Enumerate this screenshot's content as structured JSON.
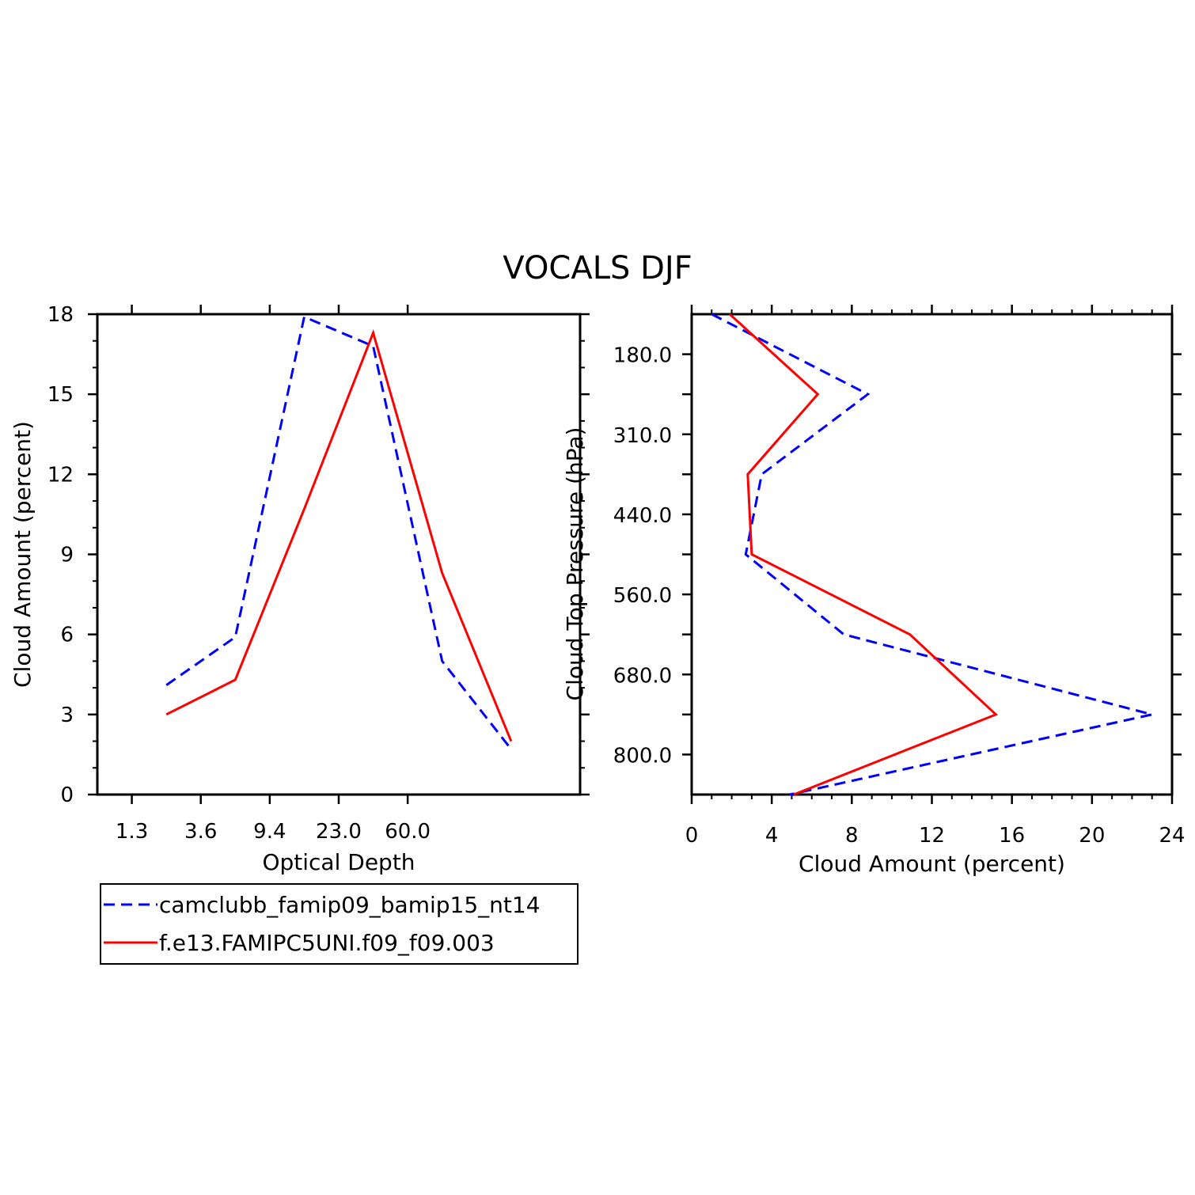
{
  "figure_title": "VOCALS DJF",
  "colors": {
    "series_a": "#0000ff",
    "series_b": "#ff0000",
    "axis": "#000000"
  },
  "chart_data": [
    {
      "type": "line",
      "id": "optical-depth",
      "xlabel": "Optical Depth",
      "ylabel": "Cloud Amount (percent)",
      "ylim": [
        0,
        18
      ],
      "yticks": [
        0,
        3,
        6,
        9,
        12,
        15,
        18
      ],
      "xtick_labels": [
        "1.3",
        "3.6",
        "9.4",
        "23.0",
        "60.0"
      ],
      "x_bins": 7,
      "series": [
        {
          "name": "camclubb_famip09_bamip15_nt14",
          "style": "dashed",
          "color": "#0000ff",
          "values": [
            4.1,
            5.9,
            17.9,
            16.8,
            5.0,
            1.7
          ]
        },
        {
          "name": "f.e13.FAMIPC5UNI.f09_f09.003",
          "style": "solid",
          "color": "#ff0000",
          "values": [
            3.0,
            4.3,
            10.7,
            17.3,
            8.3,
            2.0
          ]
        }
      ]
    },
    {
      "type": "line",
      "id": "cloud-top-pressure",
      "xlabel": "Cloud Amount (percent)",
      "ylabel": "Cloud Top Pressure (hPa)",
      "xlim": [
        0,
        24
      ],
      "xticks": [
        0,
        4,
        8,
        12,
        16,
        20,
        24
      ],
      "ytick_labels": [
        "180.0",
        "310.0",
        "440.0",
        "560.0",
        "680.0",
        "800.0"
      ],
      "y_bins": 12,
      "series": [
        {
          "name": "camclubb_famip09_bamip15_nt14",
          "style": "dashed",
          "color": "#0000ff",
          "values": [
            1.0,
            8.8,
            3.5,
            2.7,
            7.6,
            23.0,
            4.9
          ]
        },
        {
          "name": "f.e13.FAMIPC5UNI.f09_f09.003",
          "style": "solid",
          "color": "#ff0000",
          "values": [
            1.9,
            6.3,
            2.8,
            3.0,
            10.9,
            15.2,
            5.1
          ]
        }
      ]
    }
  ],
  "legend": {
    "items": [
      {
        "label": "camclubb_famip09_bamip15_nt14",
        "style": "dashed",
        "color": "#0000ff"
      },
      {
        "label": "f.e13.FAMIPC5UNI.f09_f09.003",
        "style": "solid",
        "color": "#ff0000"
      }
    ]
  }
}
